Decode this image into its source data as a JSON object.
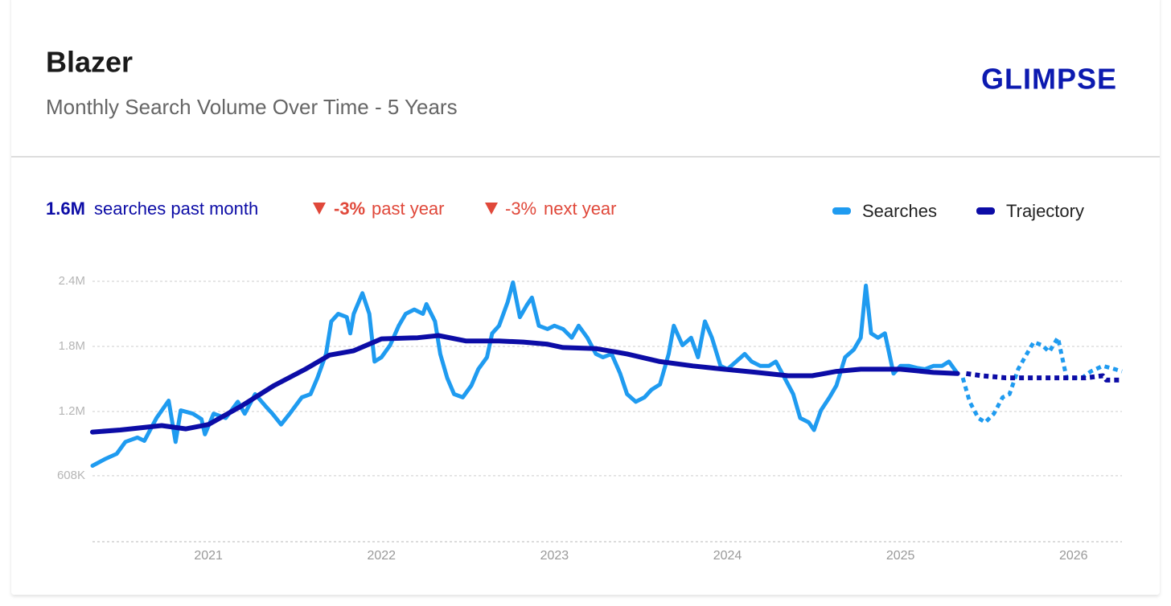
{
  "title": "Blazer",
  "subtitle": "Monthly Search Volume Over Time - 5 Years",
  "logo": "GLIMPSE",
  "stats": [
    {
      "value": "1.6M",
      "label": "searches past month"
    },
    {
      "value": "-3%",
      "label": "past year"
    },
    {
      "value": "-3%",
      "label": "next year"
    }
  ],
  "chart_data": {
    "type": "line",
    "xlim": [
      2020.33,
      2026.28
    ],
    "xticks": [
      2021,
      2022,
      2023,
      2024,
      2025,
      2026
    ],
    "ylim": [
      0,
      2400000
    ],
    "yticks": [
      {
        "value": 2400000,
        "label": "2.4M"
      },
      {
        "value": 1800000,
        "label": "1.8M"
      },
      {
        "value": 1200000,
        "label": "1.2M"
      },
      {
        "value": 608000,
        "label": "608K"
      }
    ],
    "grid": true,
    "legend": "top-right",
    "series": [
      {
        "name": "Searches",
        "color": "#1f9bf0",
        "x": [
          2020.33,
          2020.4,
          2020.47,
          2020.52,
          2020.59,
          2020.63,
          2020.7,
          2020.77,
          2020.81,
          2020.84,
          2020.91,
          2020.96,
          2020.98,
          2021.03,
          2021.1,
          2021.17,
          2021.21,
          2021.27,
          2021.33,
          2021.37,
          2021.42,
          2021.47,
          2021.54,
          2021.59,
          2021.63,
          2021.68,
          2021.71,
          2021.75,
          2021.8,
          2021.82,
          2021.84,
          2021.89,
          2021.93,
          2021.96,
          2022.0,
          2022.05,
          2022.1,
          2022.14,
          2022.19,
          2022.24,
          2022.26,
          2022.31,
          2022.34,
          2022.38,
          2022.42,
          2022.47,
          2022.52,
          2022.56,
          2022.61,
          2022.64,
          2022.68,
          2022.73,
          2022.76,
          2022.8,
          2022.84,
          2022.87,
          2022.91,
          2022.96,
          2023.0,
          2023.05,
          2023.1,
          2023.14,
          2023.19,
          2023.24,
          2023.28,
          2023.33,
          2023.38,
          2023.42,
          2023.47,
          2023.52,
          2023.56,
          2023.61,
          2023.66,
          2023.69,
          2023.74,
          2023.79,
          2023.83,
          2023.87,
          2023.91,
          2023.96,
          2024.0,
          2024.05,
          2024.1,
          2024.14,
          2024.19,
          2024.24,
          2024.28,
          2024.33,
          2024.38,
          2024.42,
          2024.47,
          2024.5,
          2024.54,
          2024.59,
          2024.63,
          2024.68,
          2024.73,
          2024.77,
          2024.8,
          2024.83,
          2024.87,
          2024.91,
          2024.96,
          2025.0,
          2025.05,
          2025.1,
          2025.14,
          2025.19,
          2025.24,
          2025.28,
          2025.33
        ],
        "values": [
          700000,
          760000,
          810000,
          920000,
          960000,
          930000,
          1140000,
          1300000,
          920000,
          1210000,
          1180000,
          1130000,
          990000,
          1180000,
          1140000,
          1290000,
          1180000,
          1360000,
          1250000,
          1180000,
          1080000,
          1180000,
          1330000,
          1360000,
          1510000,
          1730000,
          2030000,
          2100000,
          2070000,
          1920000,
          2100000,
          2290000,
          2100000,
          1660000,
          1700000,
          1810000,
          1990000,
          2100000,
          2140000,
          2100000,
          2190000,
          2030000,
          1730000,
          1510000,
          1360000,
          1330000,
          1440000,
          1590000,
          1700000,
          1920000,
          1990000,
          2210000,
          2390000,
          2070000,
          2180000,
          2250000,
          1990000,
          1960000,
          1990000,
          1960000,
          1880000,
          1990000,
          1880000,
          1730000,
          1700000,
          1730000,
          1550000,
          1360000,
          1290000,
          1330000,
          1400000,
          1450000,
          1730000,
          1990000,
          1810000,
          1880000,
          1700000,
          2030000,
          1880000,
          1620000,
          1590000,
          1660000,
          1730000,
          1660000,
          1620000,
          1620000,
          1660000,
          1510000,
          1360000,
          1140000,
          1100000,
          1030000,
          1210000,
          1330000,
          1440000,
          1700000,
          1770000,
          1880000,
          2360000,
          1920000,
          1880000,
          1920000,
          1550000,
          1620000,
          1620000,
          1600000,
          1590000,
          1620000,
          1620000,
          1660000,
          1550000
        ],
        "forecast_x": [
          2025.36,
          2025.4,
          2025.45,
          2025.49,
          2025.54,
          2025.59,
          2025.63,
          2025.68,
          2025.73,
          2025.77,
          2025.82,
          2025.86,
          2025.91,
          2025.96,
          2026.0,
          2026.05,
          2026.1,
          2026.17,
          2026.24,
          2026.28
        ],
        "forecast_values": [
          1510000,
          1290000,
          1140000,
          1100000,
          1180000,
          1330000,
          1360000,
          1590000,
          1730000,
          1840000,
          1810000,
          1750000,
          1880000,
          1510000,
          1510000,
          1510000,
          1570000,
          1620000,
          1590000,
          1570000
        ]
      },
      {
        "name": "Trajectory",
        "color": "#0c0ca6",
        "x": [
          2020.33,
          2020.49,
          2020.73,
          2020.87,
          2021.0,
          2021.19,
          2021.38,
          2021.56,
          2021.7,
          2021.84,
          2022.0,
          2022.21,
          2022.33,
          2022.49,
          2022.68,
          2022.82,
          2022.96,
          2023.05,
          2023.24,
          2023.42,
          2023.61,
          2023.8,
          2023.98,
          2024.17,
          2024.35,
          2024.49,
          2024.63,
          2024.77,
          2025.0,
          2025.19,
          2025.33
        ],
        "values": [
          1010000,
          1030000,
          1070000,
          1040000,
          1080000,
          1250000,
          1440000,
          1590000,
          1720000,
          1760000,
          1870000,
          1880000,
          1900000,
          1850000,
          1850000,
          1840000,
          1820000,
          1790000,
          1780000,
          1730000,
          1660000,
          1620000,
          1590000,
          1560000,
          1530000,
          1530000,
          1570000,
          1590000,
          1590000,
          1560000,
          1550000
        ],
        "forecast_x": [
          2025.38,
          2025.47,
          2025.61,
          2025.84,
          2026.07,
          2026.17,
          2026.19,
          2026.28
        ],
        "forecast_values": [
          1550000,
          1530000,
          1510000,
          1510000,
          1510000,
          1530000,
          1490000,
          1490000
        ]
      }
    ]
  }
}
